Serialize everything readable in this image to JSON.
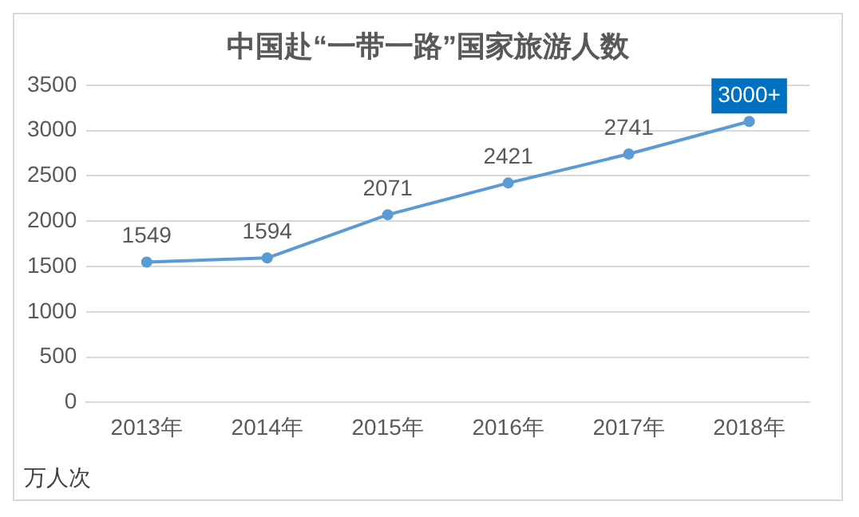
{
  "chart_data": {
    "type": "line",
    "title": "中国赴“一带一路”国家旅游人数",
    "ylabel": "万人次",
    "categories": [
      "2013年",
      "2014年",
      "2015年",
      "2016年",
      "2017年",
      "2018年"
    ],
    "series": [
      {
        "color": "#5b9bd5",
        "values": [
          1549,
          1594,
          2071,
          2421,
          2741,
          3100
        ],
        "value_labels": [
          "1549",
          "1594",
          "2071",
          "2421",
          "2741",
          "3000+"
        ]
      }
    ],
    "ylim": [
      0,
      3500
    ],
    "yticks": [
      0,
      500,
      1000,
      1500,
      2000,
      2500,
      3000,
      3500
    ],
    "grid": "y",
    "marker": "circle",
    "line_style": "solid",
    "legend": false
  }
}
